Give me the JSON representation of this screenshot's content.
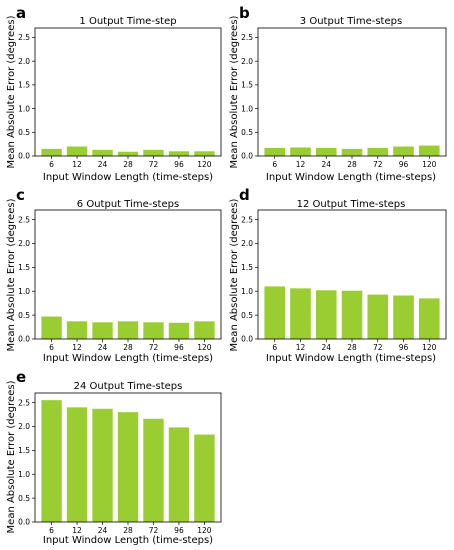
{
  "chart_data": [
    {
      "type": "bar",
      "panel": "a",
      "title": "1 Output Time-step",
      "xlabel": "Input Window Length (time-steps)",
      "ylabel": "Mean Absolute Error (degrees)",
      "categories": [
        "6",
        "12",
        "24",
        "28",
        "72",
        "96",
        "120"
      ],
      "values": [
        0.15,
        0.2,
        0.13,
        0.09,
        0.13,
        0.1,
        0.1
      ],
      "ylim": [
        0,
        2.7
      ],
      "yticks": [
        "0.0",
        "0.5",
        "1.0",
        "1.5",
        "2.0",
        "2.5"
      ],
      "color": "#9acd32"
    },
    {
      "type": "bar",
      "panel": "b",
      "title": "3 Output Time-steps",
      "xlabel": "Input Window Length (time-steps)",
      "ylabel": "Mean Absolute Error (degrees)",
      "categories": [
        "6",
        "12",
        "24",
        "28",
        "72",
        "96",
        "120"
      ],
      "values": [
        0.17,
        0.18,
        0.17,
        0.15,
        0.17,
        0.2,
        0.22
      ],
      "ylim": [
        0,
        2.7
      ],
      "yticks": [
        "0.0",
        "0.5",
        "1.0",
        "1.5",
        "2.0",
        "2.5"
      ],
      "color": "#9acd32"
    },
    {
      "type": "bar",
      "panel": "c",
      "title": "6 Output Time-steps",
      "xlabel": "Input Window Length (time-steps)",
      "ylabel": "Mean Absolute Error (degrees)",
      "categories": [
        "6",
        "12",
        "24",
        "28",
        "72",
        "96",
        "120"
      ],
      "values": [
        0.47,
        0.37,
        0.35,
        0.37,
        0.35,
        0.34,
        0.37
      ],
      "ylim": [
        0,
        2.7
      ],
      "yticks": [
        "0.0",
        "0.5",
        "1.0",
        "1.5",
        "2.0",
        "2.5"
      ],
      "color": "#9acd32"
    },
    {
      "type": "bar",
      "panel": "d",
      "title": "12 Output Time-steps",
      "xlabel": "Input Window Length (time-steps)",
      "ylabel": "Mean Absolute Error (degrees)",
      "categories": [
        "6",
        "12",
        "24",
        "28",
        "72",
        "96",
        "120"
      ],
      "values": [
        1.1,
        1.06,
        1.02,
        1.01,
        0.93,
        0.91,
        0.85
      ],
      "ylim": [
        0,
        2.7
      ],
      "yticks": [
        "0.0",
        "0.5",
        "1.0",
        "1.5",
        "2.0",
        "2.5"
      ],
      "color": "#9acd32"
    },
    {
      "type": "bar",
      "panel": "e",
      "title": "24 Output Time-steps",
      "xlabel": "Input Window Length (time-steps)",
      "ylabel": "Mean Absolute Error (degrees)",
      "categories": [
        "6",
        "12",
        "24",
        "28",
        "72",
        "96",
        "120"
      ],
      "values": [
        2.55,
        2.4,
        2.37,
        2.3,
        2.16,
        1.98,
        1.83
      ],
      "ylim": [
        0,
        2.7
      ],
      "yticks": [
        "0.0",
        "0.5",
        "1.0",
        "1.5",
        "2.0",
        "2.5"
      ],
      "color": "#9acd32"
    }
  ]
}
